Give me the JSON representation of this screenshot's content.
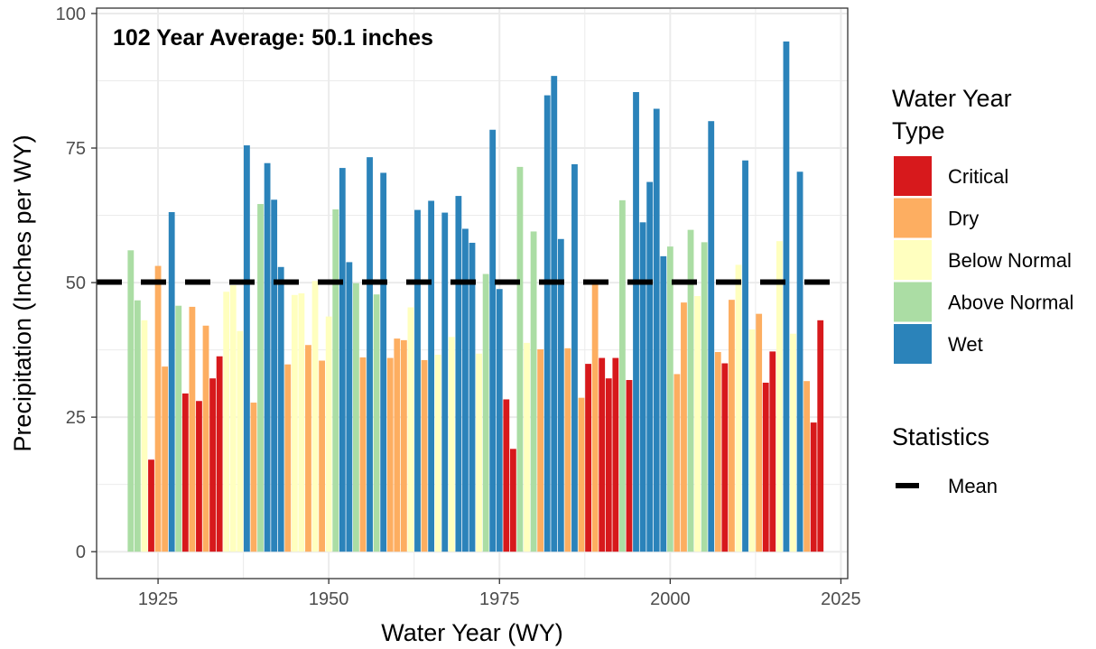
{
  "chart_data": {
    "type": "bar",
    "title": "",
    "annotation": "102 Year Average: 50.1 inches",
    "xlabel": "Water Year (WY)",
    "ylabel": "Precipitation (Inches per WY)",
    "xlim": [
      1916,
      2026
    ],
    "ylim": [
      -5,
      101
    ],
    "xticks": [
      1925,
      1950,
      1975,
      2000,
      2025
    ],
    "yticks": [
      0,
      25,
      50,
      75,
      100
    ],
    "grid": true,
    "mean_value": 50.1,
    "legend": {
      "position": "right",
      "title_line1": "Water Year",
      "title_line2": "Type",
      "entries": [
        {
          "key": "C",
          "label": "Critical",
          "color": "#d7191c"
        },
        {
          "key": "D",
          "label": "Dry",
          "color": "#fdae61"
        },
        {
          "key": "BN",
          "label": "Below Normal",
          "color": "#ffffbf"
        },
        {
          "key": "AN",
          "label": "Above Normal",
          "color": "#abdda4"
        },
        {
          "key": "W",
          "label": "Wet",
          "color": "#2b83ba"
        }
      ],
      "stats_title": "Statistics",
      "stats_entries": [
        {
          "label": "Mean",
          "style": "dashed",
          "color": "#000000"
        }
      ]
    },
    "years": [
      1921,
      1922,
      1923,
      1924,
      1925,
      1926,
      1927,
      1928,
      1929,
      1930,
      1931,
      1932,
      1933,
      1934,
      1935,
      1936,
      1937,
      1938,
      1939,
      1940,
      1941,
      1942,
      1943,
      1944,
      1945,
      1946,
      1947,
      1948,
      1949,
      1950,
      1951,
      1952,
      1953,
      1954,
      1955,
      1956,
      1957,
      1958,
      1959,
      1960,
      1961,
      1962,
      1963,
      1964,
      1965,
      1966,
      1967,
      1968,
      1969,
      1970,
      1971,
      1972,
      1973,
      1974,
      1975,
      1976,
      1977,
      1978,
      1979,
      1980,
      1981,
      1982,
      1983,
      1984,
      1985,
      1986,
      1987,
      1988,
      1989,
      1990,
      1991,
      1992,
      1993,
      1994,
      1995,
      1996,
      1997,
      1998,
      1999,
      2000,
      2001,
      2002,
      2003,
      2004,
      2005,
      2006,
      2007,
      2008,
      2009,
      2010,
      2011,
      2012,
      2013,
      2014,
      2015,
      2016,
      2017,
      2018,
      2019,
      2020,
      2021,
      2022
    ],
    "values": [
      56.0,
      46.7,
      43.0,
      17.1,
      53.1,
      34.4,
      63.1,
      45.7,
      29.4,
      45.5,
      28.0,
      42.0,
      32.2,
      36.3,
      48.3,
      49.5,
      41.0,
      75.5,
      27.7,
      64.6,
      72.2,
      65.4,
      52.9,
      34.8,
      47.7,
      48.0,
      38.4,
      50.3,
      35.5,
      43.7,
      63.6,
      71.3,
      53.8,
      49.9,
      36.1,
      73.3,
      47.8,
      70.4,
      36.0,
      39.6,
      39.3,
      45.4,
      63.5,
      35.6,
      65.2,
      36.6,
      63.0,
      39.9,
      66.1,
      60.0,
      57.4,
      36.8,
      51.6,
      78.4,
      48.8,
      28.3,
      19.1,
      71.5,
      38.8,
      59.5,
      37.6,
      84.8,
      88.4,
      58.1,
      37.8,
      72.0,
      28.6,
      34.9,
      50.1,
      36.0,
      32.2,
      36.0,
      65.3,
      31.9,
      85.4,
      61.2,
      68.7,
      82.3,
      54.9,
      56.7,
      33.0,
      46.3,
      59.8,
      47.5,
      57.5,
      80.0,
      37.1,
      35.0,
      46.8,
      53.3,
      72.7,
      41.3,
      44.2,
      31.4,
      37.2,
      57.7,
      94.8,
      40.5,
      70.6,
      31.7,
      24.0,
      43.0
    ],
    "types": [
      "AN",
      "AN",
      "BN",
      "C",
      "D",
      "D",
      "W",
      "AN",
      "C",
      "D",
      "C",
      "D",
      "C",
      "C",
      "BN",
      "BN",
      "BN",
      "W",
      "D",
      "AN",
      "W",
      "W",
      "W",
      "D",
      "BN",
      "BN",
      "D",
      "BN",
      "D",
      "BN",
      "AN",
      "W",
      "W",
      "AN",
      "D",
      "W",
      "AN",
      "W",
      "D",
      "D",
      "D",
      "BN",
      "W",
      "D",
      "W",
      "BN",
      "W",
      "BN",
      "W",
      "W",
      "W",
      "BN",
      "AN",
      "W",
      "W",
      "C",
      "C",
      "AN",
      "BN",
      "AN",
      "D",
      "W",
      "W",
      "W",
      "D",
      "W",
      "D",
      "C",
      "D",
      "C",
      "C",
      "C",
      "AN",
      "C",
      "W",
      "W",
      "W",
      "W",
      "W",
      "AN",
      "D",
      "D",
      "AN",
      "BN",
      "AN",
      "W",
      "D",
      "C",
      "D",
      "BN",
      "W",
      "BN",
      "D",
      "C",
      "C",
      "BN",
      "W",
      "BN",
      "W",
      "D",
      "C",
      "C"
    ]
  }
}
